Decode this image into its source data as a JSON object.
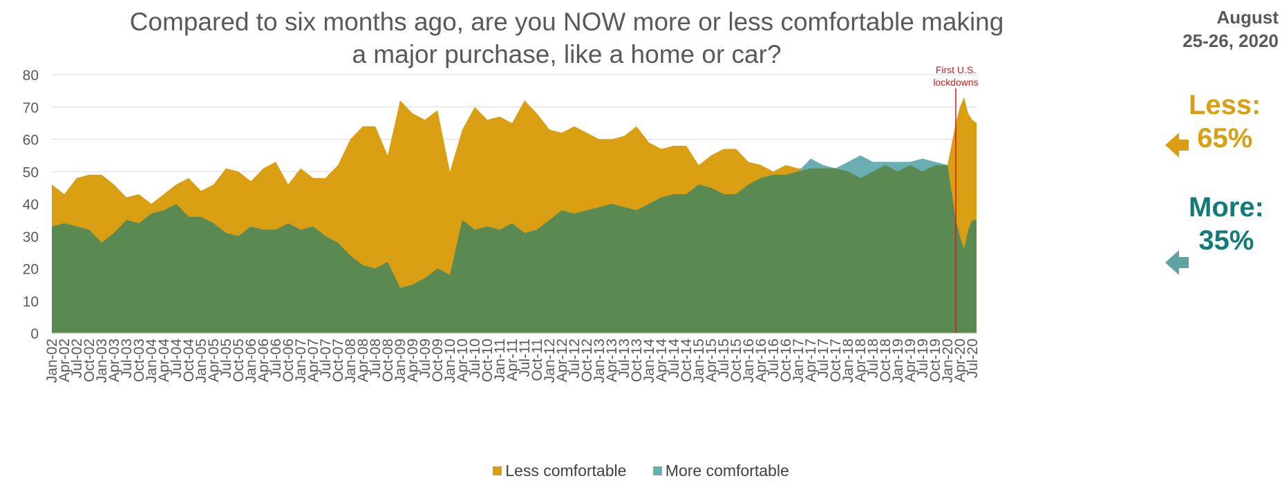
{
  "title": "Compared to six months ago, are you NOW more or less comfortable making a major purchase, like a home or car?",
  "date_label": "August\n25-26, 2020",
  "annotation": "First U.S.\nlockdowns",
  "callouts": {
    "less": {
      "label": "Less:",
      "value": "65%"
    },
    "more": {
      "label": "More:",
      "value": "35%"
    }
  },
  "legend": [
    {
      "label": "Less comfortable",
      "color": "#D99E12"
    },
    {
      "label": "More comfortable",
      "color": "#69AFB2"
    }
  ],
  "colors": {
    "less": "#D99E12",
    "more": "#69AFB2",
    "overlap": "#5A8A52",
    "lockdown_line": "#D9151A",
    "less_callout": "#D99E12",
    "more_callout": "#137A7A",
    "arrow_more": "#5FA2A1",
    "grid": "#D9D9D9",
    "axis_text": "#595959"
  },
  "chart_data": {
    "type": "area",
    "title": "Compared to six months ago, are you NOW more or less comfortable making a major purchase, like a home or car?",
    "xlabel": "",
    "ylabel": "",
    "ylim": [
      0,
      80
    ],
    "yticks": [
      0,
      10,
      20,
      30,
      40,
      50,
      60,
      70,
      80
    ],
    "grid": true,
    "legend_position": "bottom",
    "x_start": "Jan-02",
    "x_end": "Aug-20",
    "x_tick_labels": [
      "Jan-02",
      "Apr-02",
      "Jul-02",
      "Oct-02",
      "Jan-03",
      "Apr-03",
      "Jul-03",
      "Oct-03",
      "Jan-04",
      "Apr-04",
      "Jul-04",
      "Oct-04",
      "Jan-05",
      "Apr-05",
      "Jul-05",
      "Oct-05",
      "Jan-06",
      "Apr-06",
      "Jul-06",
      "Oct-06",
      "Jan-07",
      "Apr-07",
      "Jul-07",
      "Oct-07",
      "Jan-08",
      "Apr-08",
      "Jul-08",
      "Oct-08",
      "Jan-09",
      "Apr-09",
      "Jul-09",
      "Oct-09",
      "Jan-10",
      "Apr-10",
      "Jul-10",
      "Oct-10",
      "Jan-11",
      "Apr-11",
      "Jul-11",
      "Oct-11",
      "Jan-12",
      "Apr-12",
      "Jul-12",
      "Oct-12",
      "Jan-13",
      "Apr-13",
      "Jul-13",
      "Oct-13",
      "Jan-14",
      "Apr-14",
      "Jul-14",
      "Oct-14",
      "Jan-15",
      "Apr-15",
      "Jul-15",
      "Oct-15",
      "Jan-16",
      "Apr-16",
      "Jul-16",
      "Oct-16",
      "Jan-17",
      "Apr-17",
      "Jul-17",
      "Oct-17",
      "Jan-18",
      "Apr-18",
      "Jul-18",
      "Oct-18",
      "Jan-19",
      "Apr-19",
      "Jul-19",
      "Oct-19",
      "Jan-20",
      "Apr-20",
      "Jul-20"
    ],
    "annotations": [
      {
        "x": "Mar-20",
        "text": "First U.S.\nlockdowns"
      }
    ],
    "series": [
      {
        "name": "Less comfortable",
        "color": "#D99E12",
        "points": [
          [
            "Jan-02",
            46
          ],
          [
            "Apr-02",
            43
          ],
          [
            "Jul-02",
            48
          ],
          [
            "Oct-02",
            49
          ],
          [
            "Jan-03",
            49
          ],
          [
            "Apr-03",
            46
          ],
          [
            "Jul-03",
            42
          ],
          [
            "Oct-03",
            43
          ],
          [
            "Jan-04",
            40
          ],
          [
            "Apr-04",
            43
          ],
          [
            "Jul-04",
            46
          ],
          [
            "Oct-04",
            48
          ],
          [
            "Jan-05",
            44
          ],
          [
            "Apr-05",
            46
          ],
          [
            "Jul-05",
            51
          ],
          [
            "Oct-05",
            50
          ],
          [
            "Jan-06",
            47
          ],
          [
            "Apr-06",
            51
          ],
          [
            "Jul-06",
            53
          ],
          [
            "Oct-06",
            46
          ],
          [
            "Jan-07",
            51
          ],
          [
            "Apr-07",
            48
          ],
          [
            "Jul-07",
            48
          ],
          [
            "Oct-07",
            52
          ],
          [
            "Jan-08",
            60
          ],
          [
            "Apr-08",
            64
          ],
          [
            "Jul-08",
            64
          ],
          [
            "Oct-08",
            55
          ],
          [
            "Jan-09",
            72
          ],
          [
            "Apr-09",
            68
          ],
          [
            "Jul-09",
            66
          ],
          [
            "Oct-09",
            69
          ],
          [
            "Jan-10",
            50
          ],
          [
            "Apr-10",
            63
          ],
          [
            "Jul-10",
            70
          ],
          [
            "Oct-10",
            66
          ],
          [
            "Jan-11",
            67
          ],
          [
            "Apr-11",
            65
          ],
          [
            "Jul-11",
            72
          ],
          [
            "Oct-11",
            68
          ],
          [
            "Jan-12",
            63
          ],
          [
            "Apr-12",
            62
          ],
          [
            "Jul-12",
            64
          ],
          [
            "Oct-12",
            62
          ],
          [
            "Jan-13",
            60
          ],
          [
            "Apr-13",
            60
          ],
          [
            "Jul-13",
            61
          ],
          [
            "Oct-13",
            64
          ],
          [
            "Jan-14",
            59
          ],
          [
            "Apr-14",
            57
          ],
          [
            "Jul-14",
            58
          ],
          [
            "Oct-14",
            58
          ],
          [
            "Jan-15",
            52
          ],
          [
            "Apr-15",
            55
          ],
          [
            "Jul-15",
            57
          ],
          [
            "Oct-15",
            57
          ],
          [
            "Jan-16",
            53
          ],
          [
            "Apr-16",
            52
          ],
          [
            "Jul-16",
            50
          ],
          [
            "Oct-16",
            52
          ],
          [
            "Jan-17",
            51
          ],
          [
            "Apr-17",
            51
          ],
          [
            "Jul-17",
            51
          ],
          [
            "Oct-17",
            51
          ],
          [
            "Jan-18",
            50
          ],
          [
            "Apr-18",
            48
          ],
          [
            "Jul-18",
            50
          ],
          [
            "Oct-18",
            52
          ],
          [
            "Jan-19",
            50
          ],
          [
            "Apr-19",
            52
          ],
          [
            "Jul-19",
            50
          ],
          [
            "Oct-19",
            52
          ],
          [
            "Jan-20",
            52
          ],
          [
            "Mar-20",
            65
          ],
          [
            "Apr-20",
            70
          ],
          [
            "May-20",
            73
          ],
          [
            "Jun-20",
            68
          ],
          [
            "Jul-20",
            66
          ],
          [
            "Aug-20",
            65
          ]
        ]
      },
      {
        "name": "More comfortable",
        "color": "#69AFB2",
        "points": [
          [
            "Jan-02",
            33
          ],
          [
            "Apr-02",
            34
          ],
          [
            "Jul-02",
            33
          ],
          [
            "Oct-02",
            32
          ],
          [
            "Jan-03",
            28
          ],
          [
            "Apr-03",
            31
          ],
          [
            "Jul-03",
            35
          ],
          [
            "Oct-03",
            34
          ],
          [
            "Jan-04",
            37
          ],
          [
            "Apr-04",
            38
          ],
          [
            "Jul-04",
            40
          ],
          [
            "Oct-04",
            36
          ],
          [
            "Jan-05",
            36
          ],
          [
            "Apr-05",
            34
          ],
          [
            "Jul-05",
            31
          ],
          [
            "Oct-05",
            30
          ],
          [
            "Jan-06",
            33
          ],
          [
            "Apr-06",
            32
          ],
          [
            "Jul-06",
            32
          ],
          [
            "Oct-06",
            34
          ],
          [
            "Jan-07",
            32
          ],
          [
            "Apr-07",
            33
          ],
          [
            "Jul-07",
            30
          ],
          [
            "Oct-07",
            28
          ],
          [
            "Jan-08",
            24
          ],
          [
            "Apr-08",
            21
          ],
          [
            "Jul-08",
            20
          ],
          [
            "Oct-08",
            22
          ],
          [
            "Jan-09",
            14
          ],
          [
            "Apr-09",
            15
          ],
          [
            "Jul-09",
            17
          ],
          [
            "Oct-09",
            20
          ],
          [
            "Jan-10",
            18
          ],
          [
            "Apr-10",
            35
          ],
          [
            "Jul-10",
            32
          ],
          [
            "Oct-10",
            33
          ],
          [
            "Jan-11",
            32
          ],
          [
            "Apr-11",
            34
          ],
          [
            "Jul-11",
            31
          ],
          [
            "Oct-11",
            32
          ],
          [
            "Jan-12",
            35
          ],
          [
            "Apr-12",
            38
          ],
          [
            "Jul-12",
            37
          ],
          [
            "Oct-12",
            38
          ],
          [
            "Jan-13",
            39
          ],
          [
            "Apr-13",
            40
          ],
          [
            "Jul-13",
            39
          ],
          [
            "Oct-13",
            38
          ],
          [
            "Jan-14",
            40
          ],
          [
            "Apr-14",
            42
          ],
          [
            "Jul-14",
            43
          ],
          [
            "Oct-14",
            43
          ],
          [
            "Jan-15",
            46
          ],
          [
            "Apr-15",
            45
          ],
          [
            "Jul-15",
            43
          ],
          [
            "Oct-15",
            43
          ],
          [
            "Jan-16",
            46
          ],
          [
            "Apr-16",
            48
          ],
          [
            "Jul-16",
            49
          ],
          [
            "Oct-16",
            49
          ],
          [
            "Jan-17",
            50
          ],
          [
            "Apr-17",
            54
          ],
          [
            "Jul-17",
            52
          ],
          [
            "Oct-17",
            51
          ],
          [
            "Jan-18",
            53
          ],
          [
            "Apr-18",
            55
          ],
          [
            "Jul-18",
            53
          ],
          [
            "Oct-18",
            53
          ],
          [
            "Jan-19",
            53
          ],
          [
            "Apr-19",
            53
          ],
          [
            "Jul-19",
            54
          ],
          [
            "Oct-19",
            53
          ],
          [
            "Jan-20",
            52
          ],
          [
            "Mar-20",
            35
          ],
          [
            "Apr-20",
            30
          ],
          [
            "May-20",
            26
          ],
          [
            "Jun-20",
            32
          ],
          [
            "Jul-20",
            35
          ],
          [
            "Aug-20",
            35
          ]
        ]
      }
    ]
  }
}
